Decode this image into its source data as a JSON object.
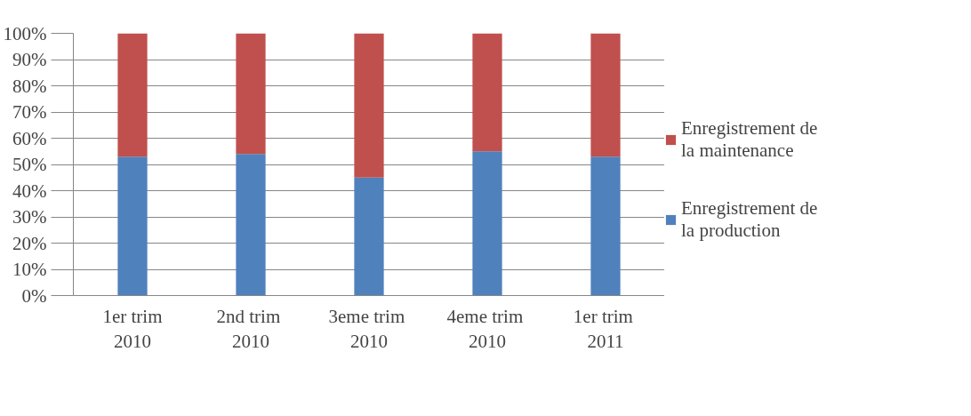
{
  "chart_data": {
    "type": "bar",
    "stacked": true,
    "categories": [
      "1er trim\n2010",
      "2nd  trim\n2010",
      "3eme  trim\n2010",
      "4eme  trim\n2010",
      "1er  trim\n2011"
    ],
    "series": [
      {
        "name": "Enregistrement de\nla production",
        "color": "#4f81bd",
        "values": [
          53,
          54,
          45,
          55,
          53
        ]
      },
      {
        "name": "Enregistrement de\nla maintenance",
        "color": "#c0504d",
        "values": [
          47,
          46,
          55,
          45,
          47
        ]
      }
    ],
    "ylim": [
      0,
      100
    ],
    "yticks": [
      {
        "value": 0,
        "label": "0%"
      },
      {
        "value": 10,
        "label": "10%"
      },
      {
        "value": 20,
        "label": "20%"
      },
      {
        "value": 30,
        "label": "30%"
      },
      {
        "value": 40,
        "label": "40%"
      },
      {
        "value": 50,
        "label": "50%"
      },
      {
        "value": 60,
        "label": "60%"
      },
      {
        "value": 70,
        "label": "70%"
      },
      {
        "value": 80,
        "label": "80%"
      },
      {
        "value": 90,
        "label": "90%"
      },
      {
        "value": 100,
        "label": "100%"
      }
    ],
    "grid": "y",
    "legend": "right"
  }
}
